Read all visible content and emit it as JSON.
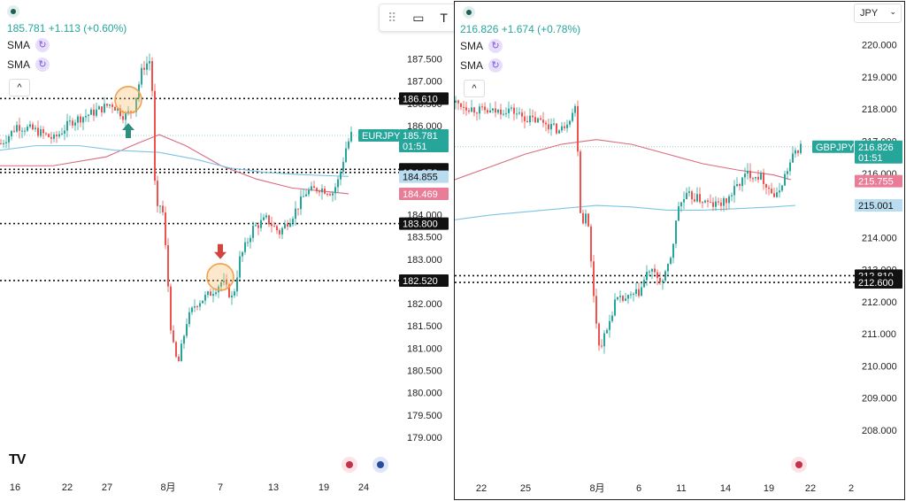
{
  "toolbar": {
    "icons": [
      "drag-handle-icon",
      "comment-icon",
      "text-tool-icon"
    ]
  },
  "charts": [
    {
      "id": "left",
      "header": {
        "price": "185.781",
        "change": "+1.113 (+0.60%)"
      },
      "indicators": [
        "SMA",
        "SMA"
      ],
      "chart_data": {
        "type": "candlestick",
        "symbol": "EURJPY",
        "ylim": [
          178.7,
          187.85
        ],
        "y_ticks": [
          "187.500",
          "187.000",
          "186.500",
          "186.000",
          "185.500",
          "185.000",
          "184.500",
          "184.000",
          "183.500",
          "183.000",
          "182.500",
          "182.000",
          "181.500",
          "181.000",
          "180.500",
          "180.000",
          "179.500",
          "179.000"
        ],
        "x_ticks": [
          "16",
          "22",
          "27",
          "8月",
          "7",
          "13",
          "19",
          "24"
        ],
        "price_path": [
          [
            0,
            185.6
          ],
          [
            10,
            185.8
          ],
          [
            18,
            186.0
          ],
          [
            38,
            185.9
          ],
          [
            60,
            185.7
          ],
          [
            80,
            186.1
          ],
          [
            105,
            186.3
          ],
          [
            125,
            186.5
          ],
          [
            140,
            186.2
          ],
          [
            150,
            186.4
          ],
          [
            160,
            187.3
          ],
          [
            170,
            187.5
          ],
          [
            175,
            184.0
          ],
          [
            182,
            184.3
          ],
          [
            187,
            183.0
          ],
          [
            193,
            181.2
          ],
          [
            200,
            180.6
          ],
          [
            210,
            181.6
          ],
          [
            220,
            182.0
          ],
          [
            235,
            182.2
          ],
          [
            250,
            182.5
          ],
          [
            262,
            182.1
          ],
          [
            270,
            183.0
          ],
          [
            285,
            183.7
          ],
          [
            300,
            183.9
          ],
          [
            315,
            183.6
          ],
          [
            330,
            184.0
          ],
          [
            345,
            184.5
          ],
          [
            360,
            184.6
          ],
          [
            375,
            184.5
          ],
          [
            382,
            184.8
          ],
          [
            390,
            185.5
          ],
          [
            396,
            185.8
          ]
        ],
        "sma_pink": [
          [
            0,
            185.1
          ],
          [
            60,
            185.1
          ],
          [
            120,
            185.3
          ],
          [
            155,
            185.6
          ],
          [
            180,
            185.8
          ],
          [
            210,
            185.55
          ],
          [
            250,
            185.1
          ],
          [
            290,
            184.8
          ],
          [
            330,
            184.6
          ],
          [
            394,
            184.47
          ]
        ],
        "sma_blue": [
          [
            0,
            185.45
          ],
          [
            40,
            185.55
          ],
          [
            90,
            185.55
          ],
          [
            130,
            185.45
          ],
          [
            180,
            185.4
          ],
          [
            220,
            185.25
          ],
          [
            260,
            185.05
          ],
          [
            300,
            184.95
          ],
          [
            340,
            184.9
          ],
          [
            394,
            184.86
          ]
        ],
        "lines": [
          {
            "value": 186.61,
            "label": "186.610",
            "bg": "#111111",
            "style": "dotted"
          },
          {
            "value": 185.02,
            "label": "185.020",
            "bg": "#111111",
            "style": "dotted"
          },
          {
            "value": 184.95,
            "label": "184.950",
            "bg": "#111111",
            "style": "dotted"
          },
          {
            "value": 183.8,
            "label": "183.800",
            "bg": "#111111",
            "style": "dotted"
          },
          {
            "value": 182.52,
            "label": "182.520",
            "bg": "#111111",
            "style": "dotted"
          }
        ],
        "value_labels": [
          {
            "value": 184.855,
            "label": "184.855",
            "bg": "#b9dcf0",
            "fg": "#111111"
          },
          {
            "value": 184.469,
            "label": "184.469",
            "bg": "#e97c96",
            "fg": "#ffffff"
          }
        ],
        "current": {
          "value": 185.781,
          "label": "185.781",
          "countdown": "01:51",
          "symbol": "EURJPY",
          "color": "#26a69a"
        },
        "markers": [
          {
            "type": "circle",
            "x": 145,
            "value": 186.58
          },
          {
            "type": "circle",
            "x": 249,
            "value": 182.6
          },
          {
            "type": "arrow-up",
            "x": 145,
            "value": 185.88,
            "color": "#2f8f7d"
          },
          {
            "type": "arrow-down",
            "x": 249,
            "value": 183.18,
            "color": "#d2453e"
          }
        ]
      }
    },
    {
      "id": "right",
      "header": {
        "price": "216.826",
        "change": "+1.674 (+0.78%)"
      },
      "indicators": [
        "SMA",
        "SMA"
      ],
      "currency": "JPY",
      "chart_data": {
        "type": "candlestick",
        "symbol": "GBPJPY",
        "ylim": [
          207.5,
          220.35
        ],
        "y_ticks": [
          "220.000",
          "219.000",
          "218.000",
          "217.000",
          "216.000",
          "215.000",
          "214.000",
          "213.000",
          "212.000",
          "211.000",
          "210.000",
          "209.000",
          "208.000"
        ],
        "x_ticks": [
          "22",
          "25",
          "8月",
          "6",
          "11",
          "14",
          "19",
          "22",
          "2"
        ],
        "price_path": [
          [
            0,
            218.2
          ],
          [
            20,
            218.0
          ],
          [
            40,
            217.9
          ],
          [
            60,
            218.0
          ],
          [
            80,
            217.7
          ],
          [
            100,
            217.6
          ],
          [
            118,
            217.3
          ],
          [
            130,
            217.8
          ],
          [
            136,
            218.1
          ],
          [
            142,
            214.2
          ],
          [
            148,
            215.0
          ],
          [
            155,
            212.5
          ],
          [
            162,
            210.6
          ],
          [
            170,
            211.0
          ],
          [
            180,
            212.0
          ],
          [
            195,
            212.1
          ],
          [
            208,
            212.3
          ],
          [
            218,
            213.0
          ],
          [
            226,
            212.8
          ],
          [
            235,
            212.6
          ],
          [
            244,
            213.5
          ],
          [
            252,
            215.0
          ],
          [
            262,
            215.3
          ],
          [
            275,
            215.2
          ],
          [
            290,
            215.0
          ],
          [
            305,
            215.1
          ],
          [
            318,
            215.6
          ],
          [
            330,
            216.0
          ],
          [
            345,
            215.9
          ],
          [
            355,
            215.5
          ],
          [
            362,
            215.2
          ],
          [
            370,
            215.8
          ],
          [
            378,
            216.3
          ],
          [
            384,
            216.7
          ],
          [
            390,
            216.82
          ]
        ],
        "sma_pink": [
          [
            0,
            215.8
          ],
          [
            40,
            216.2
          ],
          [
            80,
            216.6
          ],
          [
            120,
            216.9
          ],
          [
            160,
            217.05
          ],
          [
            200,
            216.9
          ],
          [
            240,
            216.6
          ],
          [
            280,
            216.3
          ],
          [
            320,
            216.1
          ],
          [
            360,
            215.95
          ],
          [
            380,
            215.8
          ]
        ],
        "sma_blue": [
          [
            0,
            214.55
          ],
          [
            40,
            214.7
          ],
          [
            80,
            214.8
          ],
          [
            120,
            214.9
          ],
          [
            160,
            215.0
          ],
          [
            200,
            214.95
          ],
          [
            240,
            214.85
          ],
          [
            280,
            214.85
          ],
          [
            320,
            214.9
          ],
          [
            360,
            214.95
          ],
          [
            385,
            215.0
          ]
        ],
        "lines": [
          {
            "value": 212.81,
            "label": "212.810",
            "bg": "#111111",
            "style": "dotted"
          },
          {
            "value": 212.6,
            "label": "212.600",
            "bg": "#111111",
            "style": "dotted"
          }
        ],
        "value_labels": [
          {
            "value": 215.755,
            "label": "215.755",
            "bg": "#e97c96",
            "fg": "#ffffff"
          },
          {
            "value": 215.001,
            "label": "215.001",
            "bg": "#b9dcf0",
            "fg": "#111111"
          }
        ],
        "current": {
          "value": 216.826,
          "label": "216.826",
          "countdown": "01:51",
          "symbol": "GBPJPY",
          "color": "#26a69a"
        },
        "markers": []
      }
    }
  ]
}
